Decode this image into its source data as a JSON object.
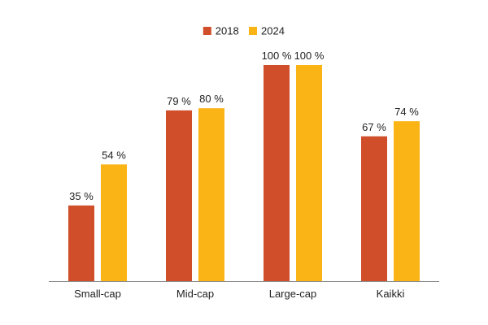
{
  "chart_data": {
    "type": "bar",
    "categories": [
      "Small-cap",
      "Mid-cap",
      "Large-cap",
      "Kaikki"
    ],
    "series": [
      {
        "name": "2018",
        "values": [
          35,
          79,
          100,
          67
        ],
        "labels": [
          "35 %",
          "79 %",
          "100 %",
          "67 %"
        ],
        "color": "#D04E29"
      },
      {
        "name": "2024",
        "values": [
          54,
          80,
          100,
          74
        ],
        "labels": [
          "54 %",
          "80 %",
          "100 %",
          "74 %"
        ],
        "color": "#FBB416"
      }
    ],
    "ylim": [
      0,
      100
    ],
    "grid": false,
    "legend_position": "top-center",
    "axis_color": "#8C8C8C"
  }
}
